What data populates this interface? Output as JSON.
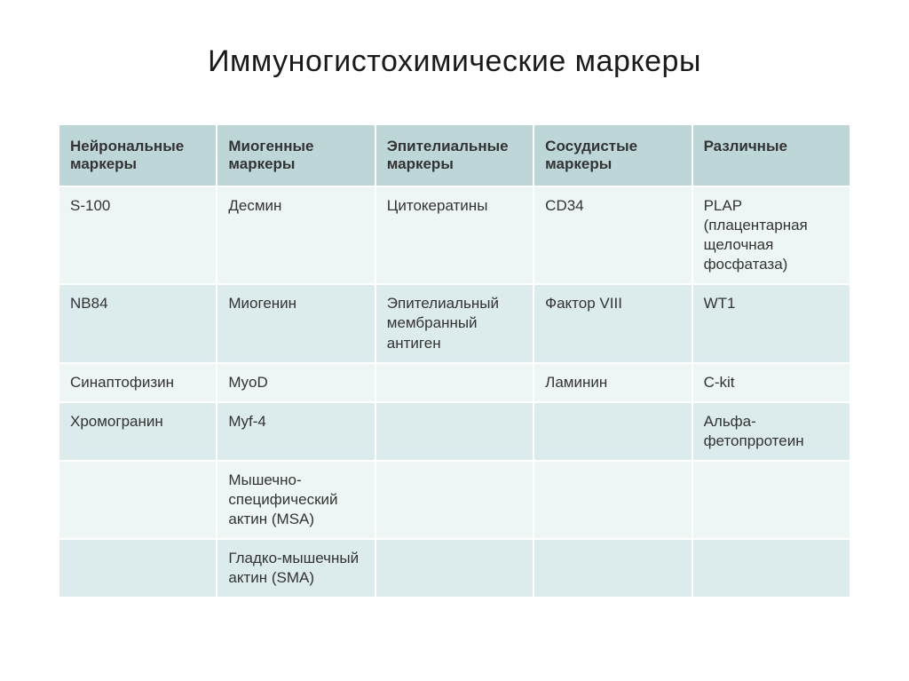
{
  "slide": {
    "title": "Иммуногистохимические маркеры"
  },
  "table": {
    "header_bg": "#bdd7d8",
    "row_odd_bg": "#eef5f5",
    "row_even_bg": "#dcebec",
    "text_color": "#333333",
    "header_fontsize": 17,
    "cell_fontsize": 17,
    "columns": [
      "Нейрональные маркеры",
      "Миогенные маркеры",
      "Эпителиальные маркеры",
      "Сосудистые маркеры",
      "Различные"
    ],
    "rows": [
      [
        "S-100",
        "Десмин",
        "Цитокератины",
        "CD34",
        "PLAP (плацентарная щелочная фосфатаза)"
      ],
      [
        "NB84",
        "Миогенин",
        "Эпителиальный мембранный антиген",
        "Фактор VIII",
        "WT1"
      ],
      [
        "Синаптофизин",
        "MyoD",
        "",
        "Ламинин",
        "C-kit"
      ],
      [
        "Хромогранин",
        "Myf-4",
        "",
        "",
        "Альфа-фетопрротеин"
      ],
      [
        "",
        "Мышечно-специфический актин (MSA)",
        "",
        "",
        ""
      ],
      [
        "",
        "Гладко-мышечный актин (SMA)",
        "",
        "",
        ""
      ]
    ]
  }
}
